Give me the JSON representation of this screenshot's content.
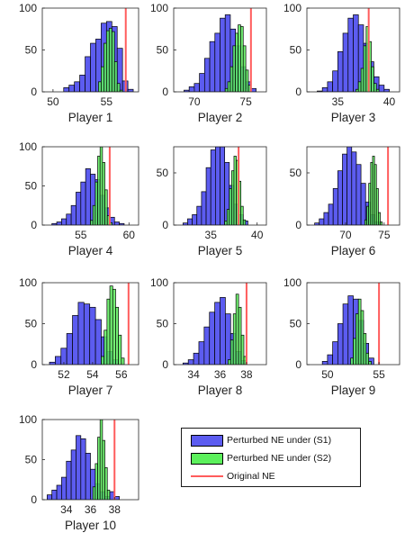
{
  "colors": {
    "s1_fill": "#5c5cf0",
    "s2_fill": "#5cf05c",
    "original_line": "#ff5c5c",
    "edge": "#000000"
  },
  "legend": {
    "s1": "Perturbed NE under (S1)",
    "s2": "Perturbed NE under (S2)",
    "ne": "Original NE"
  },
  "chart_data": [
    {
      "type": "bar",
      "title": "Player 1",
      "xlim": [
        49,
        58
      ],
      "ylim": [
        0,
        100
      ],
      "xticks": [
        50,
        55
      ],
      "yticks": [
        0,
        50,
        100
      ],
      "original_ne": 56.8,
      "series": [
        {
          "name": "Perturbed NE under (S1)",
          "bin_start": 51,
          "bin_width": 0.5,
          "values": [
            5,
            8,
            12,
            20,
            42,
            58,
            63,
            82,
            84,
            78,
            52,
            13,
            3
          ]
        },
        {
          "name": "Perturbed NE under (S2)",
          "bin_start": 54.25,
          "bin_width": 0.25,
          "values": [
            12,
            30,
            58,
            73,
            76,
            72,
            36,
            10,
            2
          ]
        }
      ]
    },
    {
      "type": "bar",
      "title": "Player 2",
      "xlim": [
        68,
        77
      ],
      "ylim": [
        0,
        100
      ],
      "xticks": [
        70,
        75
      ],
      "yticks": [
        0,
        50,
        100
      ],
      "original_ne": 75.5,
      "series": [
        {
          "name": "Perturbed NE under (S1)",
          "bin_start": 69,
          "bin_width": 0.5,
          "values": [
            2,
            6,
            10,
            22,
            40,
            60,
            70,
            88,
            92,
            75,
            55,
            30,
            12,
            4
          ]
        },
        {
          "name": "Perturbed NE under (S2)",
          "bin_start": 73.0,
          "bin_width": 0.25,
          "values": [
            4,
            12,
            30,
            55,
            70,
            80,
            78,
            55,
            26,
            8
          ]
        }
      ]
    },
    {
      "type": "bar",
      "title": "Player 3",
      "xlim": [
        32,
        41
      ],
      "ylim": [
        0,
        100
      ],
      "xticks": [
        35,
        40
      ],
      "yticks": [
        0,
        50,
        100
      ],
      "original_ne": 38.0,
      "series": [
        {
          "name": "Perturbed NE under (S1)",
          "bin_start": 33,
          "bin_width": 0.5,
          "values": [
            1,
            5,
            12,
            25,
            48,
            70,
            88,
            92,
            80,
            58,
            36,
            18,
            8,
            3
          ]
        },
        {
          "name": "Perturbed NE under (S2)",
          "bin_start": 36.75,
          "bin_width": 0.25,
          "values": [
            3,
            12,
            28,
            55,
            78,
            60,
            30,
            10,
            3
          ]
        }
      ]
    },
    {
      "type": "bar",
      "title": "Player 4",
      "xlim": [
        51,
        61
      ],
      "ylim": [
        0,
        100
      ],
      "xticks": [
        55,
        60
      ],
      "yticks": [
        0,
        50,
        100
      ],
      "original_ne": 58.0,
      "series": [
        {
          "name": "Perturbed NE under (S1)",
          "bin_start": 52,
          "bin_width": 0.5,
          "values": [
            2,
            4,
            8,
            14,
            25,
            42,
            55,
            72,
            65,
            58,
            38,
            22,
            10,
            4,
            2
          ]
        },
        {
          "name": "Perturbed NE under (S2)",
          "bin_start": 56.0,
          "bin_width": 0.25,
          "values": [
            6,
            25,
            55,
            88,
            100,
            80,
            45,
            12,
            3
          ]
        }
      ]
    },
    {
      "type": "bar",
      "title": "Player 5",
      "xlim": [
        31,
        41
      ],
      "ylim": [
        0,
        75
      ],
      "xticks": [
        35,
        40
      ],
      "yticks": [
        0,
        50
      ],
      "original_ne": 38.0,
      "series": [
        {
          "name": "Perturbed NE under (S1)",
          "bin_start": 32,
          "bin_width": 0.5,
          "values": [
            2,
            6,
            10,
            18,
            32,
            55,
            72,
            75,
            78,
            60,
            38,
            20,
            10,
            4
          ]
        },
        {
          "name": "Perturbed NE under (S2)",
          "bin_start": 36.5,
          "bin_width": 0.25,
          "values": [
            4,
            15,
            35,
            52,
            66,
            62,
            42,
            18,
            5
          ]
        }
      ]
    },
    {
      "type": "bar",
      "title": "Player 6",
      "xlim": [
        65,
        77
      ],
      "ylim": [
        0,
        75
      ],
      "xticks": [
        70,
        75
      ],
      "yticks": [
        0,
        50
      ],
      "original_ne": 75.5,
      "series": [
        {
          "name": "Perturbed NE under (S1)",
          "bin_start": 66,
          "bin_width": 0.6,
          "values": [
            2,
            6,
            12,
            20,
            35,
            52,
            68,
            75,
            70,
            58,
            40,
            22,
            10,
            3
          ]
        },
        {
          "name": "Perturbed NE under (S2)",
          "bin_start": 72.5,
          "bin_width": 0.25,
          "values": [
            5,
            18,
            40,
            60,
            66,
            58,
            35,
            12,
            3
          ]
        }
      ]
    },
    {
      "type": "bar",
      "title": "Player 7",
      "xlim": [
        50.5,
        57.2
      ],
      "ylim": [
        0,
        100
      ],
      "xticks": [
        52,
        54,
        56
      ],
      "yticks": [
        0,
        50,
        100
      ],
      "original_ne": 56.5,
      "series": [
        {
          "name": "Perturbed NE under (S1)",
          "bin_start": 51,
          "bin_width": 0.4,
          "values": [
            3,
            10,
            20,
            38,
            60,
            76,
            74,
            70,
            55,
            34,
            16,
            6
          ]
        },
        {
          "name": "Perturbed NE under (S2)",
          "bin_start": 54.6,
          "bin_width": 0.2,
          "values": [
            10,
            42,
            80,
            96,
            92,
            70,
            36,
            8
          ]
        }
      ]
    },
    {
      "type": "bar",
      "title": "Player 8",
      "xlim": [
        32.5,
        39.5
      ],
      "ylim": [
        0,
        100
      ],
      "xticks": [
        34,
        36,
        38
      ],
      "yticks": [
        0,
        50,
        100
      ],
      "original_ne": 38.0,
      "series": [
        {
          "name": "Perturbed NE under (S1)",
          "bin_start": 33.2,
          "bin_width": 0.4,
          "values": [
            2,
            6,
            14,
            28,
            46,
            64,
            76,
            82,
            62,
            38,
            16,
            5
          ]
        },
        {
          "name": "Perturbed NE under (S2)",
          "bin_start": 36.6,
          "bin_width": 0.2,
          "values": [
            6,
            30,
            62,
            86,
            70,
            36,
            10
          ]
        }
      ]
    },
    {
      "type": "bar",
      "title": "Player 9",
      "xlim": [
        48,
        57
      ],
      "ylim": [
        0,
        100
      ],
      "xticks": [
        50,
        55
      ],
      "yticks": [
        0,
        50,
        100
      ],
      "original_ne": 55.0,
      "series": [
        {
          "name": "Perturbed NE under (S1)",
          "bin_start": 49.5,
          "bin_width": 0.5,
          "values": [
            4,
            12,
            28,
            50,
            74,
            84,
            80,
            54,
            26,
            8
          ]
        },
        {
          "name": "Perturbed NE under (S2)",
          "bin_start": 52.25,
          "bin_width": 0.25,
          "values": [
            8,
            32,
            62,
            80,
            66,
            38,
            14,
            4
          ]
        }
      ]
    },
    {
      "type": "bar",
      "title": "Player 10",
      "xlim": [
        32,
        40
      ],
      "ylim": [
        0,
        100
      ],
      "xticks": [
        34,
        36,
        38
      ],
      "yticks": [
        0,
        50,
        100
      ],
      "original_ne": 38.0,
      "series": [
        {
          "name": "Perturbed NE under (S1)",
          "bin_start": 32.4,
          "bin_width": 0.4,
          "values": [
            6,
            12,
            18,
            28,
            48,
            62,
            80,
            76,
            58,
            38,
            20,
            10,
            4,
            10,
            4
          ]
        },
        {
          "name": "Perturbed NE under (S2)",
          "bin_start": 36.2,
          "bin_width": 0.2,
          "values": [
            16,
            45,
            78,
            100,
            74,
            40,
            12
          ]
        }
      ]
    }
  ]
}
